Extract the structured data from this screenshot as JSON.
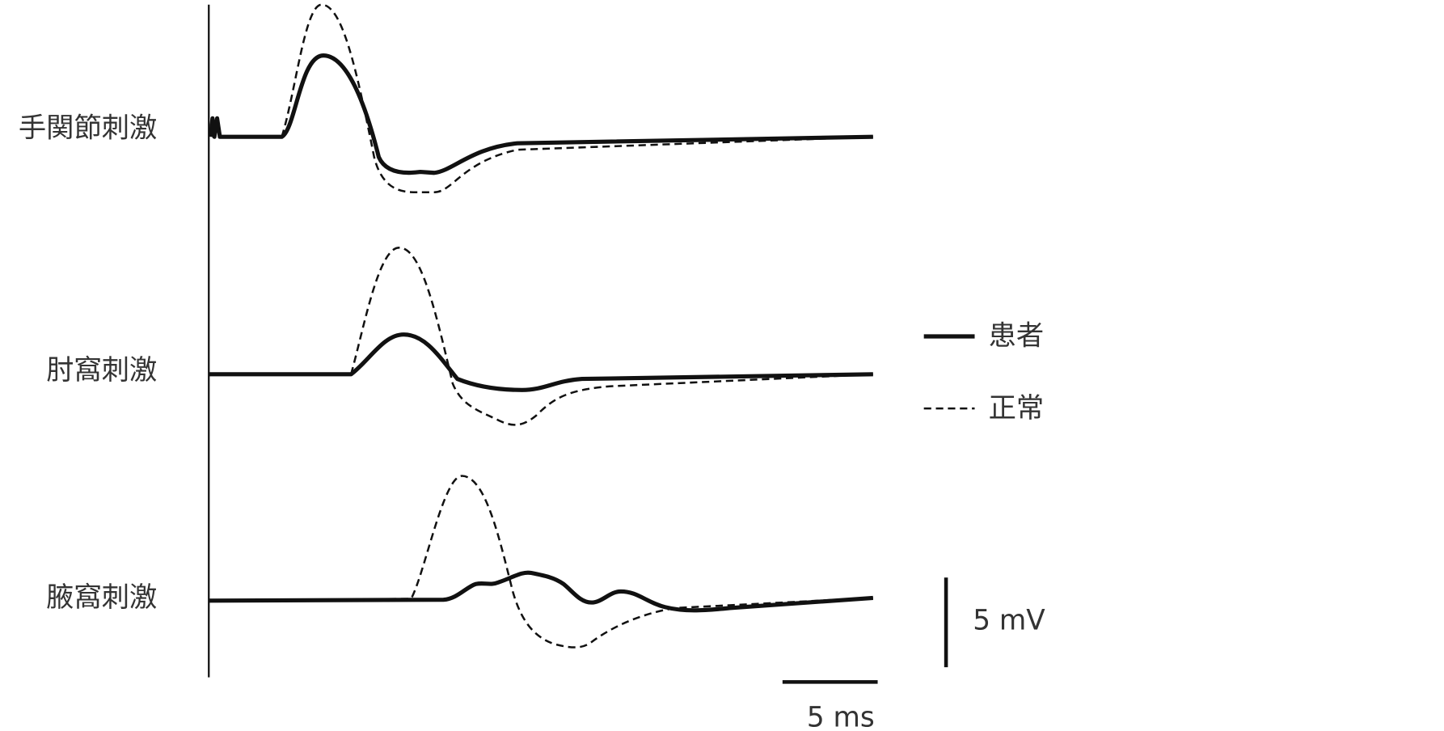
{
  "traces": [
    {
      "label": "手関節刺激"
    },
    {
      "label": "肘窩刺激"
    },
    {
      "label": "腋窩刺激"
    }
  ],
  "legend": [
    {
      "label": "患者"
    },
    {
      "label": "正常"
    }
  ],
  "scale_bars": {
    "voltage": "5 mV",
    "time": "5 ms"
  }
}
